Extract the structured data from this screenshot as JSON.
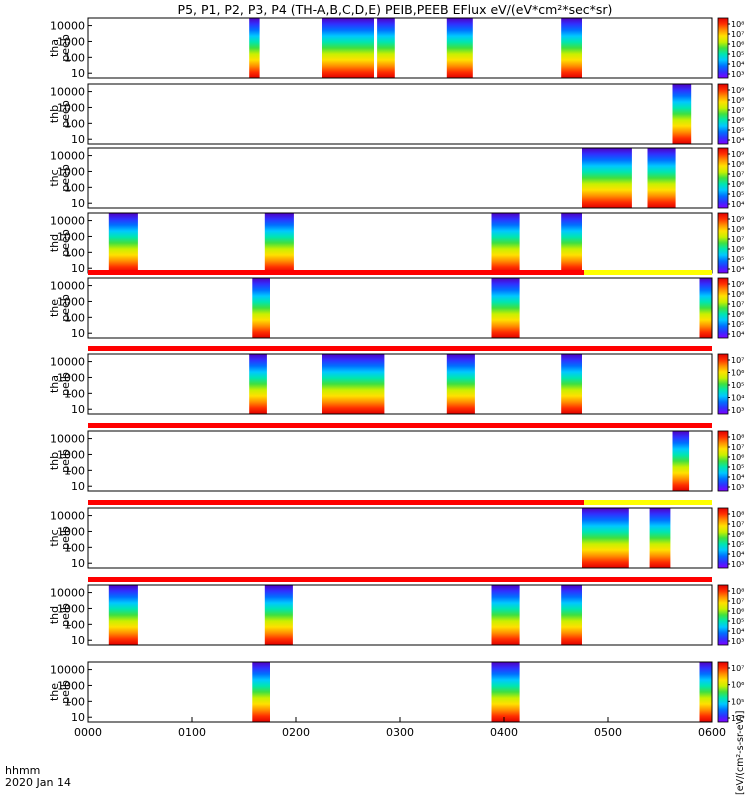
{
  "title": "P5, P1, P2, P3, P4 (TH-A,B,C,D,E) PEIB,PEEB EFlux eV/(eV*cm²*sec*sr)",
  "footer": {
    "time_label": "hhmm",
    "date_label": "2020 Jan 14"
  },
  "colorbar_unit_label": "[eV/(cm²-s-sr-eV)]",
  "chart_data": {
    "type": "heatmap",
    "x_tick_labels": [
      "0000",
      "0100",
      "0200",
      "0300",
      "0400",
      "0500",
      "0600"
    ],
    "x_range_hours": [
      0,
      6
    ],
    "y_tick_labels": [
      "10000",
      "1000",
      "100",
      "10"
    ],
    "y_range_eV": [
      5,
      30000
    ],
    "y_scale": "log",
    "panels": [
      {
        "probe": "tha",
        "species": "peeb",
        "label_lines": [
          "tha",
          "peeb"
        ],
        "cbar_labels": [
          "10⁸",
          "10⁷",
          "10⁶",
          "10⁵",
          "10⁴",
          "10³"
        ],
        "intervals": [
          [
            1.55,
            1.65
          ],
          [
            2.25,
            2.75
          ],
          [
            2.78,
            2.95
          ],
          [
            3.45,
            3.7
          ],
          [
            4.55,
            4.75
          ]
        ]
      },
      {
        "probe": "thb",
        "species": "peeb",
        "label_lines": [
          "thb",
          "peeb"
        ],
        "cbar_labels": [
          "10⁹",
          "10⁸",
          "10⁷",
          "10⁶",
          "10⁵",
          "10⁴"
        ],
        "intervals": [
          [
            5.62,
            5.8
          ]
        ]
      },
      {
        "probe": "thc",
        "species": "peeb",
        "label_lines": [
          "thc",
          "peeb"
        ],
        "cbar_labels": [
          "10⁹",
          "10⁸",
          "10⁷",
          "10⁶",
          "10⁵",
          "10⁴"
        ],
        "intervals": [
          [
            4.75,
            5.23
          ],
          [
            5.38,
            5.65
          ]
        ]
      },
      {
        "probe": "thd",
        "species": "peeb",
        "label_lines": [
          "thd",
          "peeb"
        ],
        "cbar_labels": [
          "10⁹",
          "10⁸",
          "10⁷",
          "10⁶",
          "10⁵",
          "10⁴"
        ],
        "intervals": [
          [
            0.2,
            0.48
          ],
          [
            1.7,
            1.98
          ],
          [
            3.88,
            4.15
          ],
          [
            4.55,
            4.75
          ]
        ]
      },
      {
        "probe": "the",
        "species": "peeb",
        "label_lines": [
          "the",
          "peeb"
        ],
        "cbar_labels": [
          "10⁹",
          "10⁸",
          "10⁷",
          "10⁶",
          "10⁵",
          "10⁴"
        ],
        "intervals": [
          [
            1.58,
            1.75
          ],
          [
            3.88,
            4.15
          ],
          [
            5.88,
            6.0
          ]
        ]
      },
      {
        "probe": "tha",
        "species": "peib",
        "label_lines": [
          "tha",
          "peib"
        ],
        "cbar_labels": [
          "10⁷",
          "10⁶",
          "10⁵",
          "10⁴",
          "10³"
        ],
        "intervals": [
          [
            1.55,
            1.72
          ],
          [
            2.25,
            2.85
          ],
          [
            3.45,
            3.72
          ],
          [
            4.55,
            4.75
          ]
        ]
      },
      {
        "probe": "thb",
        "species": "peib",
        "label_lines": [
          "thb",
          "peib"
        ],
        "cbar_labels": [
          "10⁸",
          "10⁷",
          "10⁶",
          "10⁵",
          "10⁴",
          "10³"
        ],
        "intervals": [
          [
            5.62,
            5.78
          ]
        ]
      },
      {
        "probe": "thc",
        "species": "peib",
        "label_lines": [
          "thc",
          "peib"
        ],
        "cbar_labels": [
          "10⁸",
          "10⁷",
          "10⁶",
          "10⁵",
          "10⁴",
          "10³"
        ],
        "intervals": [
          [
            4.75,
            5.2
          ],
          [
            5.4,
            5.6
          ]
        ]
      },
      {
        "probe": "thd",
        "species": "peib",
        "label_lines": [
          "thd",
          "peib"
        ],
        "cbar_labels": [
          "10⁸",
          "10⁷",
          "10⁶",
          "10⁵",
          "10⁴",
          "10³"
        ],
        "intervals": [
          [
            0.2,
            0.48
          ],
          [
            1.7,
            1.97
          ],
          [
            3.88,
            4.15
          ],
          [
            4.55,
            4.75
          ]
        ]
      },
      {
        "probe": "the",
        "species": "peib",
        "label_lines": [
          "the",
          "peib"
        ],
        "cbar_labels": [
          "10⁷",
          "10⁶",
          "10⁵",
          "10⁴"
        ],
        "intervals": [
          [
            1.58,
            1.75
          ],
          [
            3.88,
            4.15
          ],
          [
            5.88,
            6.0
          ]
        ]
      }
    ],
    "state_bars": [
      {
        "after_panel": 4,
        "segments": [
          {
            "from": 0,
            "to": 4.77,
            "color": "#ff0000"
          },
          {
            "from": 4.77,
            "to": 6,
            "color": "#ffff00"
          }
        ]
      },
      {
        "after_panel": 5,
        "segments": [
          {
            "from": 0,
            "to": 6,
            "color": "#ff0000"
          }
        ]
      },
      {
        "after_panel": 6,
        "segments": [
          {
            "from": 0,
            "to": 6,
            "color": "#ff0000"
          }
        ]
      },
      {
        "after_panel": 7,
        "segments": [
          {
            "from": 0,
            "to": 4.77,
            "color": "#ff0000"
          },
          {
            "from": 4.77,
            "to": 6,
            "color": "#ffff00"
          }
        ]
      },
      {
        "after_panel": 8,
        "segments": [
          {
            "from": 0,
            "to": 6,
            "color": "#ff0000"
          }
        ]
      }
    ],
    "colormap": [
      "#7f00ff",
      "#3030ff",
      "#0070ff",
      "#00c8ff",
      "#00e6b0",
      "#40e040",
      "#c8f000",
      "#ffe000",
      "#ff9000",
      "#ff3000",
      "#e00000"
    ],
    "grid": false
  }
}
